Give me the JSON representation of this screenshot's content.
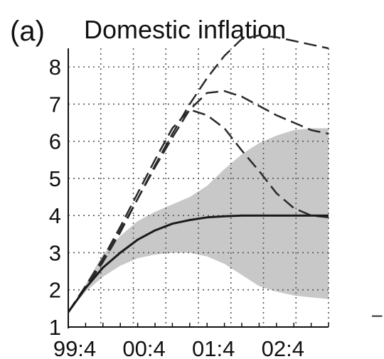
{
  "panel_label": "(a)",
  "side_mark": "–",
  "colors": {
    "band": "#c8c8c8",
    "median": "#1a1a1a",
    "dashed": "#2a2a2a",
    "grid": "#555555",
    "axis": "#111111"
  },
  "chart_data": {
    "type": "area",
    "title": "Domestic inflation",
    "xlabel": "",
    "ylabel": "",
    "x_ticks": [
      "99:4",
      "00:4",
      "01:4",
      "02:4"
    ],
    "x_tick_positions": [
      0,
      4,
      8,
      12
    ],
    "xlim": [
      0,
      15
    ],
    "ylim": [
      1,
      8.5
    ],
    "y_ticks": [
      1,
      2,
      3,
      4,
      5,
      6,
      7,
      8
    ],
    "grid": true,
    "legend": "none",
    "series": [
      {
        "role": "median",
        "style": "solid",
        "x": [
          0,
          1,
          2,
          3,
          4,
          5,
          6,
          7,
          8,
          9,
          10,
          11,
          12,
          13,
          14,
          15
        ],
        "values": [
          1.4,
          2.05,
          2.6,
          3.0,
          3.35,
          3.6,
          3.78,
          3.88,
          3.95,
          3.98,
          4.0,
          4.0,
          4.0,
          4.0,
          4.0,
          4.0
        ]
      },
      {
        "role": "band_upper",
        "x": [
          0,
          1,
          2,
          3,
          4,
          5,
          6,
          7,
          8,
          9,
          10,
          11,
          12,
          13,
          14,
          15
        ],
        "values": [
          1.4,
          2.15,
          2.95,
          3.45,
          3.85,
          4.1,
          4.3,
          4.5,
          4.8,
          5.25,
          5.65,
          5.95,
          6.15,
          6.3,
          6.35,
          6.35
        ]
      },
      {
        "role": "band_lower",
        "x": [
          0,
          1,
          2,
          3,
          4,
          5,
          6,
          7,
          8,
          9,
          10,
          11,
          12,
          13,
          14,
          15
        ],
        "values": [
          1.4,
          1.95,
          2.35,
          2.65,
          2.85,
          2.95,
          3.0,
          3.0,
          2.9,
          2.7,
          2.4,
          2.1,
          1.95,
          1.85,
          1.8,
          1.75
        ]
      },
      {
        "role": "path_1",
        "style": "dashed",
        "x": [
          0,
          1,
          2,
          3,
          4,
          5,
          6,
          7,
          8,
          9,
          10,
          11,
          12,
          13,
          14,
          15
        ],
        "values": [
          1.4,
          2.05,
          2.75,
          3.55,
          4.45,
          5.35,
          6.2,
          7.0,
          7.7,
          8.3,
          8.75,
          8.85,
          8.8,
          8.7,
          8.6,
          8.5
        ]
      },
      {
        "role": "path_2",
        "style": "dashed",
        "x": [
          0,
          1,
          2,
          3,
          4,
          5,
          6,
          7,
          8,
          9,
          10,
          11,
          12,
          13,
          14,
          15
        ],
        "values": [
          1.4,
          2.1,
          2.8,
          3.6,
          4.45,
          5.3,
          6.1,
          6.85,
          7.3,
          7.35,
          7.2,
          6.95,
          6.7,
          6.5,
          6.3,
          6.2
        ]
      },
      {
        "role": "path_3",
        "style": "dashed",
        "x": [
          0,
          1,
          2,
          3,
          4,
          5,
          6,
          7,
          8,
          9,
          10,
          11,
          12,
          13,
          14,
          15
        ],
        "values": [
          1.4,
          2.1,
          2.85,
          3.7,
          4.6,
          5.5,
          6.35,
          6.85,
          6.7,
          6.35,
          5.75,
          5.2,
          4.6,
          4.2,
          4.0,
          3.95
        ]
      }
    ]
  }
}
